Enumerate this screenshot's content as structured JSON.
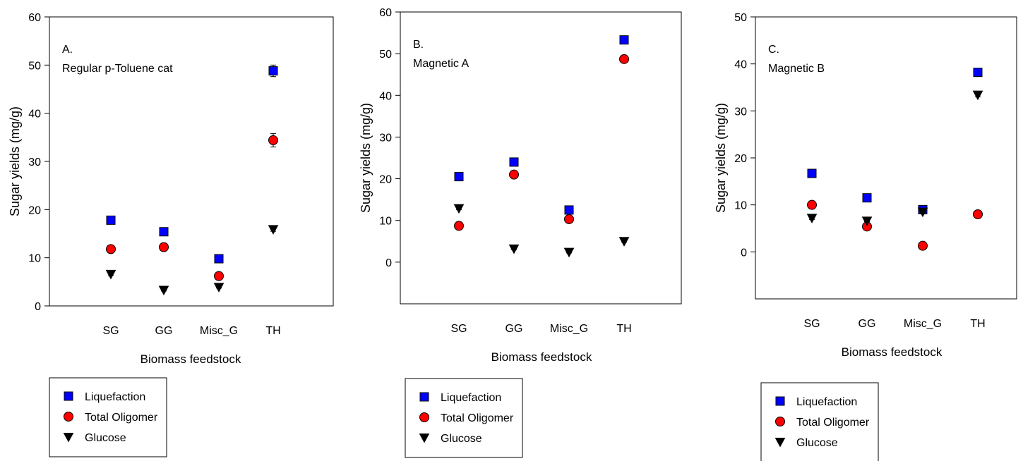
{
  "chart_data": [
    {
      "type": "scatter",
      "panel_label": "A.",
      "title": "Regular p-Toluene cat",
      "xlabel": "Biomass feedstock",
      "ylabel": "Sugar yields (mg/g)",
      "categories": [
        "SG",
        "GG",
        "Misc_G",
        "TH"
      ],
      "ylim": [
        0,
        60
      ],
      "yticks": [
        0,
        10,
        20,
        30,
        40,
        50,
        60
      ],
      "series": [
        {
          "name": "Liquefaction",
          "marker": "square",
          "color": "#0000ff",
          "values": [
            17.8,
            15.4,
            9.8,
            48.8
          ],
          "errors": [
            0.6,
            0.5,
            0.4,
            1.2
          ]
        },
        {
          "name": "Total Oligomer",
          "marker": "circle",
          "color": "#ff0000",
          "values": [
            11.8,
            12.2,
            6.2,
            34.4
          ],
          "errors": [
            0.4,
            0.4,
            0.3,
            1.4
          ]
        },
        {
          "name": "Glucose",
          "marker": "triangle-down",
          "color": "#000000",
          "values": [
            6.6,
            3.3,
            3.9,
            15.9
          ],
          "errors": [
            0.3,
            0.2,
            0.2,
            0.4
          ]
        }
      ]
    },
    {
      "type": "scatter",
      "panel_label": "B.",
      "title": "Magnetic A",
      "xlabel": "Biomass feedstock",
      "ylabel": "Sugar yields (mg/g)",
      "categories": [
        "SG",
        "GG",
        "Misc_G",
        "TH"
      ],
      "ylim": [
        -10,
        60
      ],
      "yticks": [
        0,
        10,
        20,
        30,
        40,
        50,
        60
      ],
      "series": [
        {
          "name": "Liquefaction",
          "marker": "square",
          "color": "#0000ff",
          "values": [
            20.5,
            24.0,
            12.5,
            53.3
          ],
          "errors": [
            0.5,
            0.5,
            0.5,
            0.6
          ]
        },
        {
          "name": "Total Oligomer",
          "marker": "circle",
          "color": "#ff0000",
          "values": [
            8.7,
            21.0,
            10.3,
            48.7
          ],
          "errors": [
            0.3,
            0.4,
            0.3,
            0.5
          ]
        },
        {
          "name": "Glucose",
          "marker": "triangle-down",
          "color": "#000000",
          "values": [
            12.9,
            3.2,
            2.4,
            5.0
          ],
          "errors": [
            0.3,
            0.2,
            0.2,
            0.2
          ]
        }
      ]
    },
    {
      "type": "scatter",
      "panel_label": "C.",
      "title": "Magnetic B",
      "xlabel": "Biomass feedstock",
      "ylabel": "Sugar yields (mg/g)",
      "categories": [
        "SG",
        "GG",
        "Misc_G",
        "TH"
      ],
      "ylim": [
        -10,
        50
      ],
      "yticks": [
        0,
        10,
        20,
        30,
        40,
        50
      ],
      "series": [
        {
          "name": "Liquefaction",
          "marker": "square",
          "color": "#0000ff",
          "values": [
            16.7,
            11.5,
            9.0,
            38.2
          ],
          "errors": [
            0.4,
            0.4,
            0.3,
            0.5
          ]
        },
        {
          "name": "Total Oligomer",
          "marker": "circle",
          "color": "#ff0000",
          "values": [
            10.0,
            5.4,
            1.3,
            8.0
          ],
          "errors": [
            0.3,
            0.3,
            0.2,
            0.3
          ]
        },
        {
          "name": "Glucose",
          "marker": "triangle-down",
          "color": "#000000",
          "values": [
            7.2,
            6.6,
            8.5,
            33.4
          ],
          "errors": [
            0.3,
            0.2,
            0.3,
            0.4
          ]
        }
      ]
    }
  ]
}
